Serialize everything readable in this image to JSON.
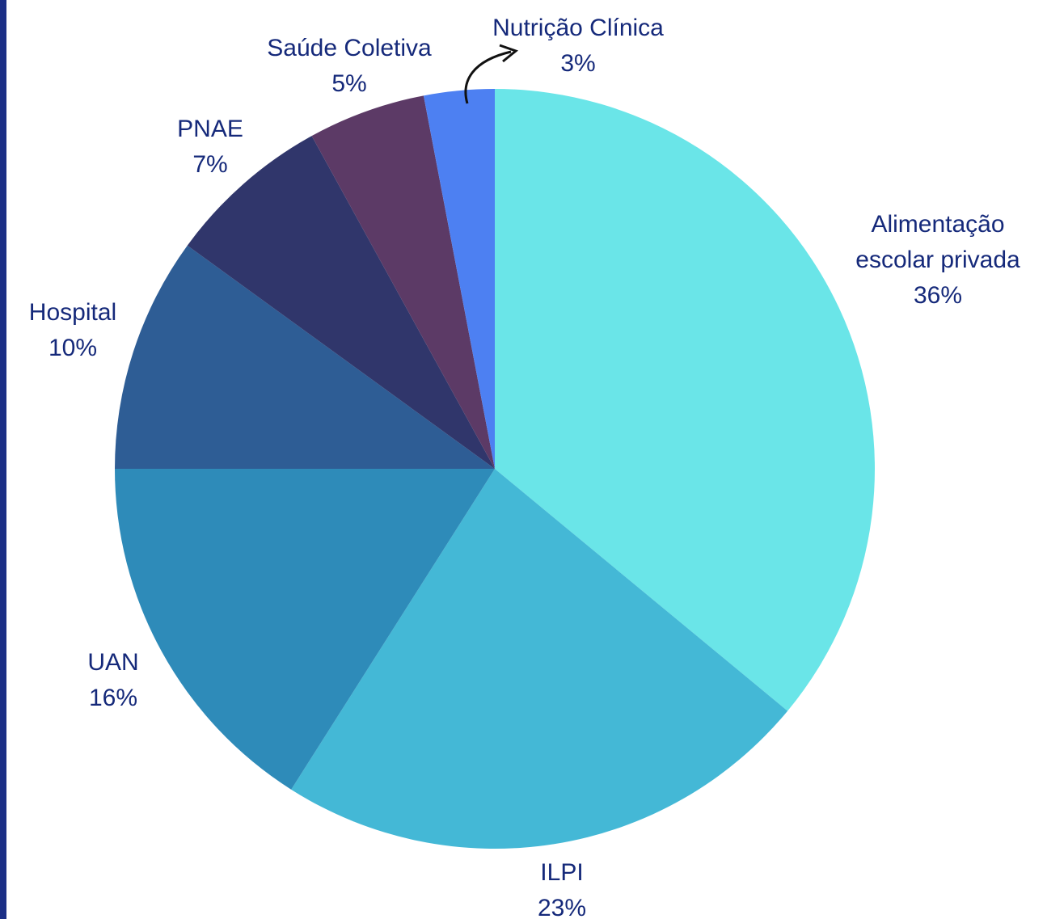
{
  "chart_data": {
    "type": "pie",
    "categories": [
      "Alimentação escolar privada",
      "ILPI",
      "UAN",
      "Hospital",
      "PNAE",
      "Saúde Coletiva",
      "Nutrição Clínica"
    ],
    "values": [
      36,
      23,
      16,
      10,
      7,
      5,
      3
    ],
    "value_labels": [
      "36%",
      "23%",
      "16%",
      "10%",
      "7%",
      "5%",
      "3%"
    ],
    "colors": [
      "#6ae5e8",
      "#44b8d6",
      "#2e8bb9",
      "#2e5d95",
      "#30366b",
      "#5c3a66",
      "#4d80f2"
    ]
  }
}
